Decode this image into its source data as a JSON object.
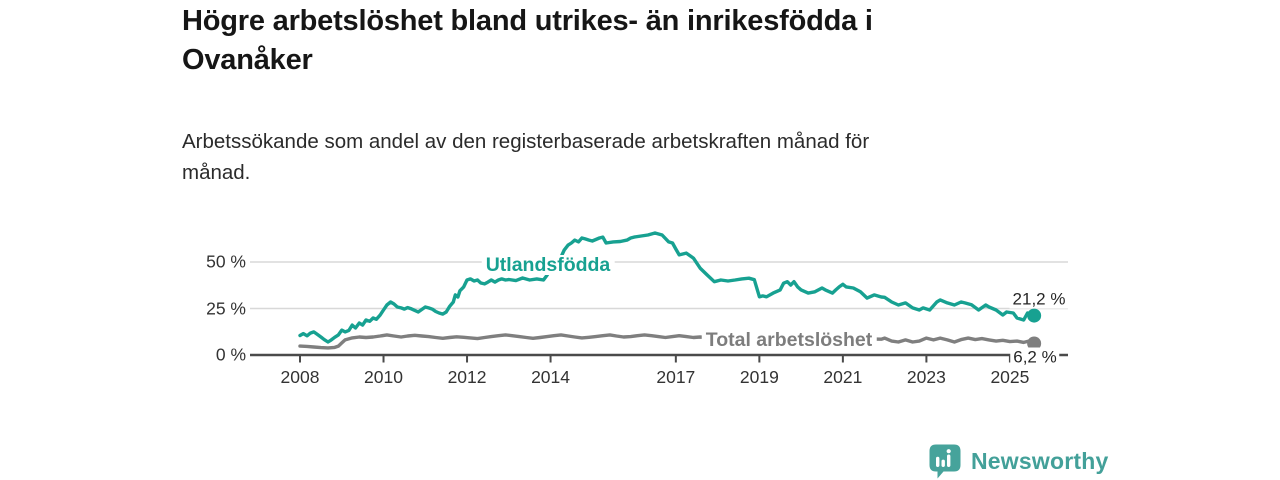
{
  "title": {
    "full": "Högre arbetslöshet bland utrikes- än inrikesfödda i Ovanåker",
    "line1": "Högre arbetslöshet bland utrikes- än inrikesfödda i",
    "line2": "Ovanåker"
  },
  "subtitle": {
    "full": "Arbetssökande som andel av den registerbaserade arbetskraften månad för månad.",
    "line1": "Arbetssökande som andel av den registerbaserade arbetskraften månad för",
    "line2": "månad."
  },
  "colors": {
    "foreign_born_line": "#17a191",
    "total_line": "#7f7f7f",
    "gridline": "#d8d8d8",
    "axis": "#4a4a4a",
    "text": "#333333",
    "brand_teal": "#43a099"
  },
  "branding": {
    "logo_text": "Newsworthy",
    "logo_icon": "bar-chart-speech-bubble-icon"
  },
  "chart_data": {
    "type": "line",
    "title": "Högre arbetslöshet bland utrikes- än inrikesfödda i Ovanåker",
    "subtitle": "Arbetssökande som andel av den registerbaserade arbetskraften månad för månad.",
    "unit": "%",
    "grid": "horizontal-only",
    "legend_position": "inline-labels",
    "x_axis": {
      "range": [
        2008,
        2025.7
      ],
      "ticks": [
        {
          "value": 2008,
          "label": "2008"
        },
        {
          "value": 2010,
          "label": "2010"
        },
        {
          "value": 2012,
          "label": "2012"
        },
        {
          "value": 2014,
          "label": "2014"
        },
        {
          "value": 2017,
          "label": "2017"
        },
        {
          "value": 2019,
          "label": "2019"
        },
        {
          "value": 2021,
          "label": "2021"
        },
        {
          "value": 2023,
          "label": "2023"
        },
        {
          "value": 2025,
          "label": "2025"
        }
      ]
    },
    "y_axis": {
      "range": [
        0,
        70
      ],
      "ticks": [
        {
          "value": 0,
          "label": "0 %"
        },
        {
          "value": 25,
          "label": "25 %"
        },
        {
          "value": 50,
          "label": "50 %"
        }
      ]
    },
    "series": [
      {
        "id": "utlandsfodda",
        "name": "Utlandsfödda",
        "color": "#17a191",
        "end_value": 21.2,
        "end_label": "21,2 %",
        "points": [
          [
            2008.0,
            10.5
          ],
          [
            2008.08,
            11.5
          ],
          [
            2008.17,
            10.3
          ],
          [
            2008.25,
            11.8
          ],
          [
            2008.33,
            12.4
          ],
          [
            2008.42,
            11.0
          ],
          [
            2008.5,
            9.7
          ],
          [
            2008.58,
            8.3
          ],
          [
            2008.67,
            7.0
          ],
          [
            2008.75,
            8.1
          ],
          [
            2008.83,
            9.5
          ],
          [
            2008.92,
            10.8
          ],
          [
            2009.0,
            13.4
          ],
          [
            2009.08,
            12.4
          ],
          [
            2009.17,
            13.2
          ],
          [
            2009.25,
            16.1
          ],
          [
            2009.33,
            14.5
          ],
          [
            2009.42,
            17.2
          ],
          [
            2009.5,
            16.1
          ],
          [
            2009.58,
            18.8
          ],
          [
            2009.67,
            18.1
          ],
          [
            2009.75,
            19.9
          ],
          [
            2009.83,
            19.2
          ],
          [
            2009.92,
            21.5
          ],
          [
            2010.0,
            24.2
          ],
          [
            2010.08,
            26.9
          ],
          [
            2010.17,
            28.5
          ],
          [
            2010.25,
            27.4
          ],
          [
            2010.33,
            25.8
          ],
          [
            2010.42,
            25.3
          ],
          [
            2010.5,
            24.7
          ],
          [
            2010.58,
            25.5
          ],
          [
            2010.67,
            24.8
          ],
          [
            2010.75,
            24.0
          ],
          [
            2010.83,
            23.1
          ],
          [
            2010.92,
            24.5
          ],
          [
            2011.0,
            25.8
          ],
          [
            2011.08,
            25.3
          ],
          [
            2011.17,
            24.6
          ],
          [
            2011.25,
            23.4
          ],
          [
            2011.33,
            22.6
          ],
          [
            2011.42,
            22.0
          ],
          [
            2011.5,
            23.1
          ],
          [
            2011.58,
            26.0
          ],
          [
            2011.67,
            28.5
          ],
          [
            2011.72,
            32.3
          ],
          [
            2011.78,
            31.2
          ],
          [
            2011.83,
            34.5
          ],
          [
            2011.92,
            36.6
          ],
          [
            2012.0,
            40.3
          ],
          [
            2012.08,
            40.9
          ],
          [
            2012.17,
            39.8
          ],
          [
            2012.25,
            40.3
          ],
          [
            2012.33,
            38.7
          ],
          [
            2012.42,
            38.2
          ],
          [
            2012.5,
            39.2
          ],
          [
            2012.58,
            40.3
          ],
          [
            2012.67,
            39.2
          ],
          [
            2012.75,
            40.3
          ],
          [
            2012.83,
            40.9
          ],
          [
            2012.92,
            40.3
          ],
          [
            2013.0,
            40.6
          ],
          [
            2013.17,
            40.0
          ],
          [
            2013.33,
            41.4
          ],
          [
            2013.5,
            40.3
          ],
          [
            2013.67,
            40.9
          ],
          [
            2013.83,
            40.3
          ],
          [
            2013.92,
            43.0
          ],
          [
            2014.0,
            46.7
          ],
          [
            2014.08,
            47.3
          ],
          [
            2014.17,
            50.0
          ],
          [
            2014.25,
            52.7
          ],
          [
            2014.33,
            56.5
          ],
          [
            2014.42,
            59.1
          ],
          [
            2014.5,
            60.2
          ],
          [
            2014.58,
            61.8
          ],
          [
            2014.67,
            60.8
          ],
          [
            2014.75,
            62.9
          ],
          [
            2014.83,
            62.4
          ],
          [
            2014.92,
            61.8
          ],
          [
            2015.0,
            61.3
          ],
          [
            2015.17,
            62.9
          ],
          [
            2015.25,
            63.4
          ],
          [
            2015.33,
            60.2
          ],
          [
            2015.5,
            60.8
          ],
          [
            2015.67,
            61.0
          ],
          [
            2015.83,
            61.8
          ],
          [
            2015.92,
            62.9
          ],
          [
            2016.0,
            63.4
          ],
          [
            2016.17,
            64.0
          ],
          [
            2016.33,
            64.5
          ],
          [
            2016.5,
            65.6
          ],
          [
            2016.67,
            64.5
          ],
          [
            2016.83,
            60.8
          ],
          [
            2016.92,
            60.2
          ],
          [
            2017.0,
            57.0
          ],
          [
            2017.08,
            53.8
          ],
          [
            2017.25,
            54.8
          ],
          [
            2017.42,
            52.1
          ],
          [
            2017.58,
            46.7
          ],
          [
            2017.75,
            43.0
          ],
          [
            2017.92,
            39.4
          ],
          [
            2018.08,
            40.3
          ],
          [
            2018.25,
            39.8
          ],
          [
            2018.42,
            40.3
          ],
          [
            2018.58,
            40.9
          ],
          [
            2018.75,
            41.3
          ],
          [
            2018.88,
            40.5
          ],
          [
            2019.0,
            31.3
          ],
          [
            2019.08,
            31.8
          ],
          [
            2019.17,
            31.3
          ],
          [
            2019.33,
            33.3
          ],
          [
            2019.5,
            35.0
          ],
          [
            2019.58,
            38.6
          ],
          [
            2019.67,
            39.4
          ],
          [
            2019.75,
            37.6
          ],
          [
            2019.83,
            39.4
          ],
          [
            2019.92,
            36.5
          ],
          [
            2020.0,
            35.0
          ],
          [
            2020.17,
            33.3
          ],
          [
            2020.33,
            34.0
          ],
          [
            2020.5,
            36.0
          ],
          [
            2020.58,
            35.0
          ],
          [
            2020.75,
            33.3
          ],
          [
            2020.83,
            35.0
          ],
          [
            2020.92,
            36.8
          ],
          [
            2021.0,
            38.0
          ],
          [
            2021.08,
            36.6
          ],
          [
            2021.25,
            36.0
          ],
          [
            2021.42,
            34.0
          ],
          [
            2021.58,
            30.6
          ],
          [
            2021.75,
            32.3
          ],
          [
            2021.92,
            31.2
          ],
          [
            2022.0,
            31.0
          ],
          [
            2022.17,
            28.5
          ],
          [
            2022.33,
            26.9
          ],
          [
            2022.5,
            28.0
          ],
          [
            2022.67,
            25.3
          ],
          [
            2022.83,
            24.2
          ],
          [
            2022.92,
            25.3
          ],
          [
            2023.08,
            24.2
          ],
          [
            2023.25,
            28.5
          ],
          [
            2023.33,
            29.6
          ],
          [
            2023.5,
            28.0
          ],
          [
            2023.67,
            26.9
          ],
          [
            2023.83,
            28.5
          ],
          [
            2023.92,
            28.0
          ],
          [
            2024.08,
            27.0
          ],
          [
            2024.25,
            24.2
          ],
          [
            2024.42,
            26.9
          ],
          [
            2024.5,
            25.8
          ],
          [
            2024.67,
            24.2
          ],
          [
            2024.83,
            21.5
          ],
          [
            2024.92,
            23.1
          ],
          [
            2025.08,
            22.6
          ],
          [
            2025.17,
            19.9
          ],
          [
            2025.33,
            18.8
          ],
          [
            2025.42,
            22.6
          ],
          [
            2025.58,
            21.2
          ]
        ]
      },
      {
        "id": "total-arbetsloshet",
        "name": "Total arbetslöshet",
        "color": "#7f7f7f",
        "end_value": 6.2,
        "end_label": "6,2 %",
        "points": [
          [
            2008.0,
            4.8
          ],
          [
            2008.17,
            4.6
          ],
          [
            2008.33,
            4.3
          ],
          [
            2008.5,
            4.0
          ],
          [
            2008.67,
            3.8
          ],
          [
            2008.83,
            4.1
          ],
          [
            2008.92,
            4.8
          ],
          [
            2009.0,
            6.5
          ],
          [
            2009.08,
            8.1
          ],
          [
            2009.25,
            9.2
          ],
          [
            2009.42,
            9.7
          ],
          [
            2009.58,
            9.4
          ],
          [
            2009.75,
            9.7
          ],
          [
            2009.92,
            10.2
          ],
          [
            2010.08,
            10.8
          ],
          [
            2010.25,
            10.2
          ],
          [
            2010.42,
            9.7
          ],
          [
            2010.58,
            10.2
          ],
          [
            2010.75,
            10.6
          ],
          [
            2010.92,
            10.2
          ],
          [
            2011.08,
            9.9
          ],
          [
            2011.25,
            9.4
          ],
          [
            2011.42,
            9.0
          ],
          [
            2011.58,
            9.4
          ],
          [
            2011.75,
            9.8
          ],
          [
            2011.92,
            9.5
          ],
          [
            2012.08,
            9.2
          ],
          [
            2012.25,
            8.8
          ],
          [
            2012.42,
            9.4
          ],
          [
            2012.58,
            9.9
          ],
          [
            2012.75,
            10.4
          ],
          [
            2012.92,
            10.8
          ],
          [
            2013.08,
            10.4
          ],
          [
            2013.25,
            9.9
          ],
          [
            2013.42,
            9.4
          ],
          [
            2013.58,
            9.0
          ],
          [
            2013.75,
            9.4
          ],
          [
            2013.92,
            9.9
          ],
          [
            2014.08,
            10.4
          ],
          [
            2014.25,
            10.8
          ],
          [
            2014.42,
            10.2
          ],
          [
            2014.58,
            9.7
          ],
          [
            2014.75,
            9.2
          ],
          [
            2014.92,
            9.5
          ],
          [
            2015.08,
            9.9
          ],
          [
            2015.25,
            10.4
          ],
          [
            2015.42,
            10.8
          ],
          [
            2015.58,
            10.2
          ],
          [
            2015.75,
            9.7
          ],
          [
            2015.92,
            9.9
          ],
          [
            2016.08,
            10.4
          ],
          [
            2016.25,
            10.8
          ],
          [
            2016.42,
            10.4
          ],
          [
            2016.58,
            9.9
          ],
          [
            2016.75,
            9.4
          ],
          [
            2016.92,
            9.9
          ],
          [
            2017.08,
            10.4
          ],
          [
            2017.25,
            9.9
          ],
          [
            2017.42,
            9.4
          ],
          [
            2017.58,
            9.7
          ],
          [
            2017.75,
            9.4
          ],
          [
            2017.92,
            9.0
          ],
          [
            2018.17,
            9.4
          ],
          [
            2018.42,
            9.7
          ],
          [
            2018.67,
            9.2
          ],
          [
            2018.92,
            8.8
          ],
          [
            2019.17,
            8.6
          ],
          [
            2019.42,
            8.8
          ],
          [
            2019.67,
            9.2
          ],
          [
            2019.92,
            9.7
          ],
          [
            2020.17,
            10.2
          ],
          [
            2020.42,
            10.4
          ],
          [
            2020.67,
            10.0
          ],
          [
            2020.92,
            9.7
          ],
          [
            2021.17,
            9.4
          ],
          [
            2021.42,
            9.0
          ],
          [
            2021.67,
            8.6
          ],
          [
            2021.92,
            8.5
          ],
          [
            2022.0,
            9.1
          ],
          [
            2022.17,
            7.5
          ],
          [
            2022.33,
            7.0
          ],
          [
            2022.5,
            8.1
          ],
          [
            2022.67,
            7.0
          ],
          [
            2022.83,
            7.5
          ],
          [
            2023.0,
            9.1
          ],
          [
            2023.17,
            8.1
          ],
          [
            2023.33,
            9.1
          ],
          [
            2023.5,
            8.1
          ],
          [
            2023.67,
            7.0
          ],
          [
            2023.83,
            8.3
          ],
          [
            2024.0,
            9.1
          ],
          [
            2024.17,
            8.3
          ],
          [
            2024.33,
            8.8
          ],
          [
            2024.5,
            8.1
          ],
          [
            2024.67,
            7.5
          ],
          [
            2024.83,
            7.9
          ],
          [
            2025.0,
            7.2
          ],
          [
            2025.17,
            7.5
          ],
          [
            2025.33,
            6.8
          ],
          [
            2025.45,
            7.5
          ],
          [
            2025.58,
            6.2
          ]
        ]
      }
    ]
  }
}
